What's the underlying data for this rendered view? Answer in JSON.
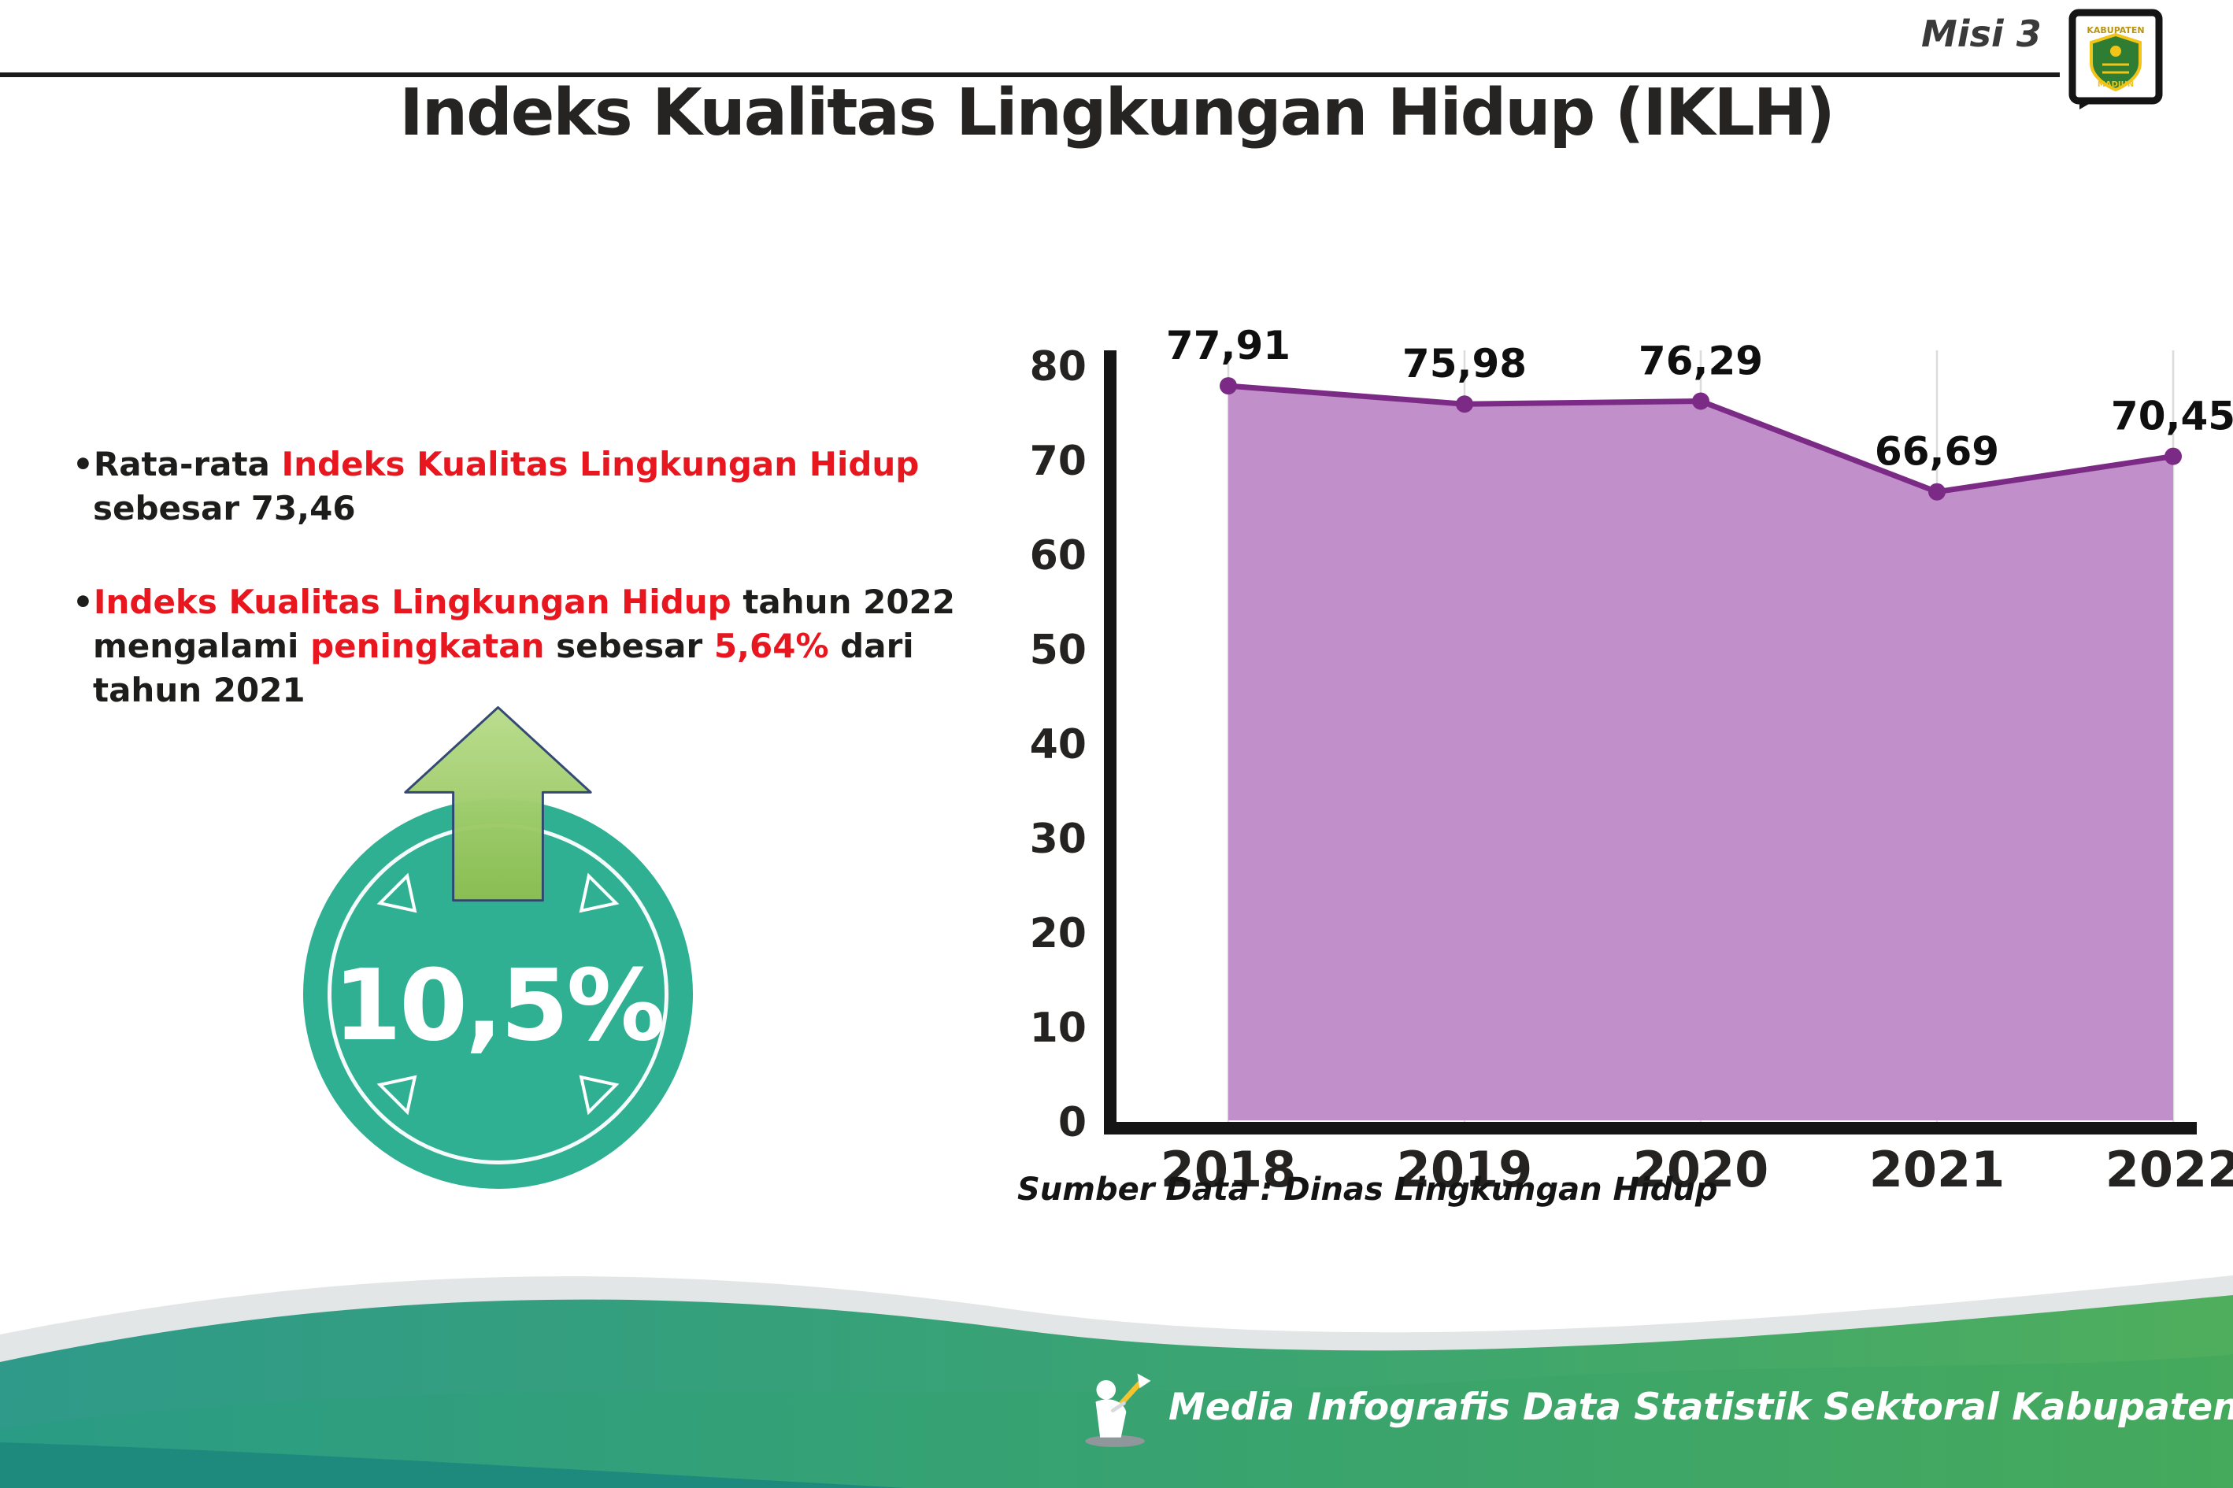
{
  "header": {
    "misi": "Misi 3",
    "title": "Indeks Kualitas Lingkungan Hidup (IKLH)",
    "logo": {
      "line1": "KABUPATEN",
      "line2": "MADIUN"
    }
  },
  "bullets": [
    {
      "marker": "•",
      "segments": [
        {
          "text": "Rata-rata ",
          "style": "dark"
        },
        {
          "text": "Indeks Kualitas Lingkungan Hidup",
          "style": "red"
        },
        {
          "text": " sebesar 73,46",
          "style": "dark"
        }
      ]
    },
    {
      "marker": "•",
      "segments": [
        {
          "text": "Indeks Kualitas Lingkungan Hidup",
          "style": "red"
        },
        {
          "text": " tahun 2022 mengalami ",
          "style": "dark"
        },
        {
          "text": "peningkatan",
          "style": "red"
        },
        {
          "text": " sebesar ",
          "style": "dark"
        },
        {
          "text": "5,64%",
          "style": "red"
        },
        {
          "text": " dari tahun 2021",
          "style": "dark"
        }
      ]
    }
  ],
  "badge": {
    "value": "10,5%",
    "circle_color": "#2fb093",
    "arrow_color": "#a4cf6d"
  },
  "chart_data": {
    "type": "area",
    "title": "Indeks Kualitas Lingkungan Hidup (IKLH)",
    "categories": [
      "2018",
      "2019",
      "2020",
      "2021",
      "2022"
    ],
    "values": [
      77.91,
      75.98,
      76.29,
      66.69,
      70.45
    ],
    "value_labels": [
      "77,91",
      "75,98",
      "76,29",
      "66,69",
      "70,45"
    ],
    "ylim": [
      0,
      80
    ],
    "yticks": [
      0,
      10,
      20,
      30,
      40,
      50,
      60,
      70,
      80
    ],
    "grid": "vertical",
    "legend": "none",
    "line_color": "#7b2b85",
    "fill_color": "#c18fca",
    "source": "Sumber Data : Dinas Lingkungan Hidup"
  },
  "footer": {
    "credit": "Media Infografis Data Statistik Sektoral Kabupaten Madiun |"
  }
}
